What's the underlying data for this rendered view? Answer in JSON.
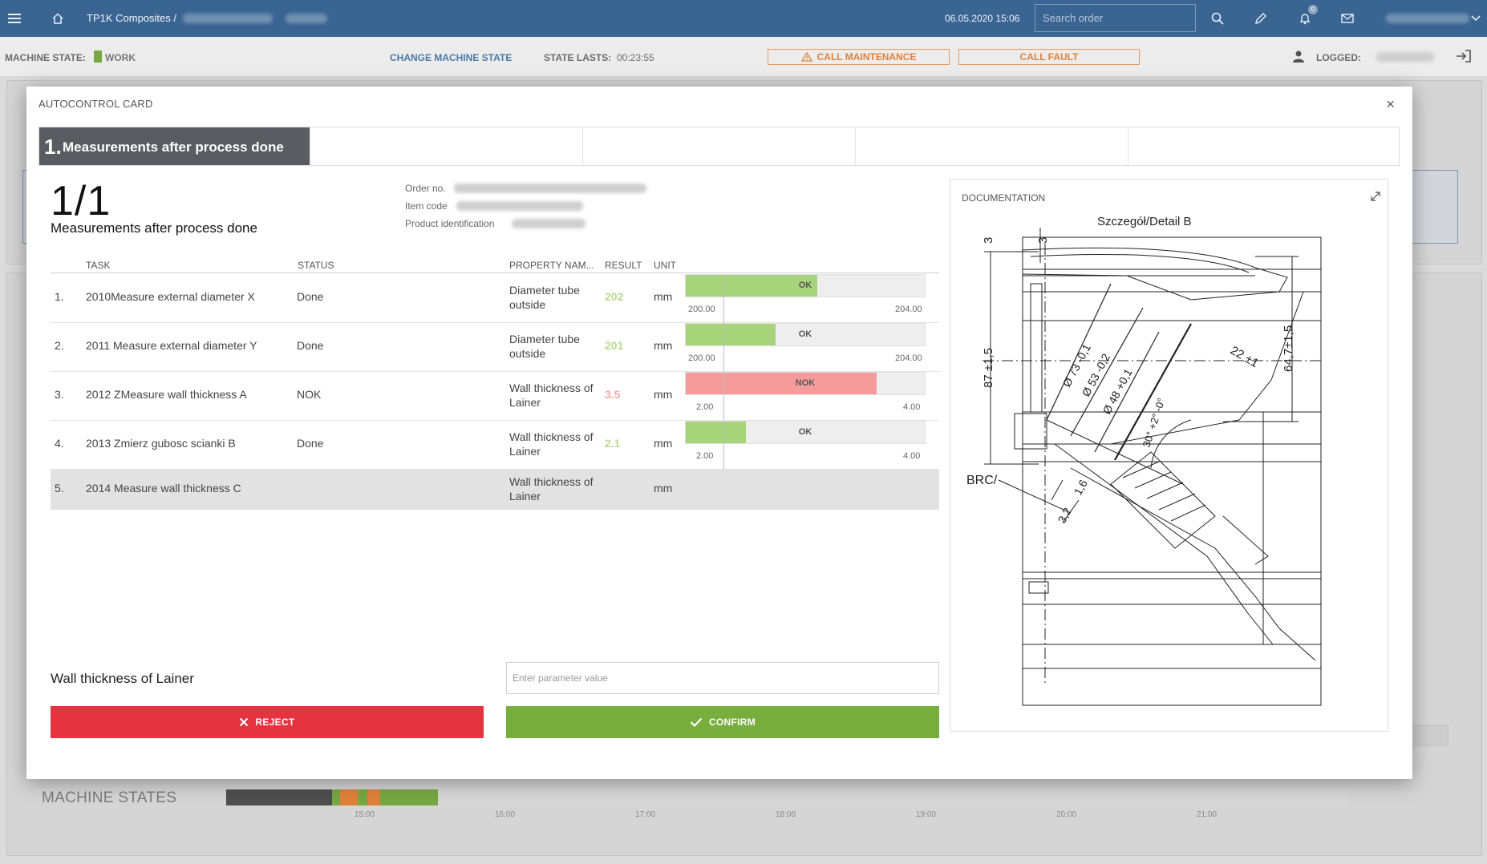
{
  "topbar": {
    "menu_icon": "hamburger-icon",
    "home_icon": "home-icon",
    "breadcrumb": "TP1K Composites  /",
    "datetime": "06.05.2020 15:06",
    "search_placeholder": "Search order",
    "notifications_count": "0"
  },
  "statebar": {
    "machine_state_label": "MACHINE STATE:",
    "machine_state_value": "WORK",
    "machine_state_color": "#77a843",
    "change_state_label": "CHANGE MACHINE STATE",
    "state_lasts_label": "STATE LASTS:",
    "state_lasts_value": "00:23:55",
    "call_maintenance_label": "CALL MAINTENANCE",
    "call_fault_label": "CALL FAULT",
    "logged_label": "LOGGED:"
  },
  "background": {
    "machine_states_title": "MACHINE STATES",
    "timeline_ticks": [
      "15:00",
      "16:00",
      "17:00",
      "18:00",
      "19:00",
      "20:00",
      "21:00"
    ]
  },
  "modal": {
    "title": "AUTOCONTROL CARD",
    "close_label": "×",
    "step_number": "1.",
    "step_title": "Measurements after process done",
    "counter": "1/1",
    "subtitle": "Measurements after process done",
    "order_no_label": "Order no.",
    "item_code_label": "Item code",
    "product_id_label": "Product identification",
    "columns": [
      "TASK",
      "STATUS",
      "PROPERTY NAM...",
      "RESULT",
      "UNIT"
    ],
    "rows": [
      {
        "index": "1.",
        "task": "2010Measure external diameter X",
        "status": "Done",
        "property": "Diameter tube outside",
        "result": "202",
        "result_color": "#b9d98f",
        "unit": "mm",
        "gauge_label": "OK",
        "gauge_fill": 0.55,
        "gauge_color": "#a7d37a",
        "min": "200.00",
        "max": "204.00"
      },
      {
        "index": "2.",
        "task": "2011 Measure external diameter Y",
        "status": "Done",
        "property": "Diameter tube outside",
        "result": "201",
        "result_color": "#b9d98f",
        "unit": "mm",
        "gauge_label": "OK",
        "gauge_fill": 0.375,
        "gauge_color": "#a7d37a",
        "min": "200.00",
        "max": "204.00"
      },
      {
        "index": "3.",
        "task": "2012 ZMeasure wall thickness A",
        "status": "NOK",
        "property": "Wall thickness of Lainer",
        "result": "3.5",
        "result_color": "#f0a9a9",
        "unit": "mm",
        "gauge_label": "NOK",
        "gauge_fill": 0.8,
        "gauge_color": "#f59b9b",
        "min": "2.00",
        "max": "4.00"
      },
      {
        "index": "4.",
        "task": "2013 Zmierz gubosc scianki B",
        "status": "Done",
        "property": "Wall thickness of Lainer",
        "result": "2.1",
        "result_color": "#b9d98f",
        "unit": "mm",
        "gauge_label": "OK",
        "gauge_fill": 0.25,
        "gauge_color": "#a7d37a",
        "min": "2.00",
        "max": "4.00"
      },
      {
        "index": "5.",
        "task": "2014 Measure wall thickness C",
        "status": "",
        "property": "Wall thickness of Lainer",
        "result": "",
        "result_color": "#999999",
        "unit": "mm"
      }
    ],
    "param_label": "Wall thickness of Lainer",
    "param_placeholder": "Enter parameter value",
    "reject_label": "REJECT",
    "confirm_label": "CONFIRM",
    "documentation_title": "DOCUMENTATION",
    "drawing": {
      "title": "Szczegół/Detail B",
      "dims": [
        "3",
        "3",
        "87 ±1,5",
        "64,7±1,5",
        "22 ±1",
        "Ø 73 -0,1",
        "Ø 53 -0,2",
        "Ø 48 +0,1",
        "30° +2° -0°",
        "1,6",
        "3,2",
        "BRC/"
      ]
    }
  }
}
